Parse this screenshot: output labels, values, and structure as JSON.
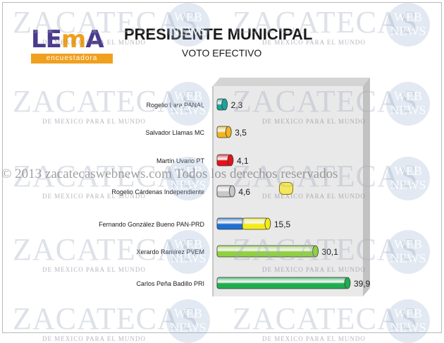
{
  "logo": {
    "word_a": "LE",
    "word_m": "m",
    "word_b": "A",
    "tagline": "encuestadora"
  },
  "title": "PRESIDENTE MUNICIPAL",
  "subtitle": "VOTO EFECTIVO",
  "watermark": {
    "text": "ZACATECAS",
    "tagline": "DE MEXICO PARA EL MUNDO",
    "badge_line1": "WEB",
    "badge_line2": "NEWS",
    "copyright": "© 2013 zacatecaswebnews.com Todos los derechos reservados"
  },
  "chart_data": {
    "type": "bar",
    "orientation": "horizontal",
    "categories": [
      "Rogelio Lara PANAL",
      "Salvador Llamas MC",
      "Martín Uvario PT",
      "Rogelio Cárdenas Independiente",
      "Fernando González Bueno PAN-PRD",
      "Xerardo Ramírez PVEM",
      "Carlos Peña Badillo PRI"
    ],
    "values": [
      2.3,
      3.5,
      4.1,
      4.6,
      15.5,
      30.1,
      39.9
    ],
    "value_labels": [
      "2,3",
      "3,5",
      "4,1",
      "4,6",
      "15,5",
      "30,1",
      "39,9"
    ],
    "colors": [
      [
        "#1aa39a"
      ],
      [
        "#f2b51c"
      ],
      [
        "#e3121b"
      ],
      [
        "#c8c8c8"
      ],
      [
        "#1f6fd1",
        "#f4ec1a"
      ],
      [
        "#8fd13f"
      ],
      [
        "#1fae4f"
      ]
    ],
    "xlim": [
      0,
      42
    ],
    "grid": false,
    "legend": "none"
  }
}
